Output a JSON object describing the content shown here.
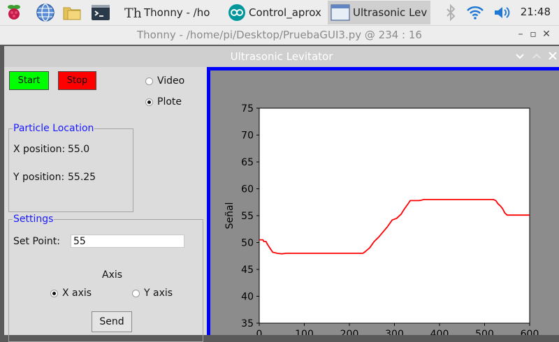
{
  "taskbar": {
    "tasks": [
      {
        "label": "Thonny  -  /ho",
        "icon": "thonny-icon"
      },
      {
        "label": "Control_aprox",
        "icon": "arduino-icon"
      },
      {
        "label": "Ultrasonic Lev",
        "icon": "window-icon"
      }
    ],
    "clock": "21:48"
  },
  "thonny": {
    "title": "Thonny  -  /home/pi/Desktop/PruebaGUI3.py  @  234 : 16"
  },
  "window": {
    "title": "Ultrasonic Levitator",
    "start_label": "Start",
    "stop_label": "Stop",
    "mode_options": [
      {
        "label": "Video",
        "selected": false
      },
      {
        "label": "Plote",
        "selected": true
      }
    ],
    "particle_location": {
      "title": "Particle Location",
      "x_label": "X position:",
      "x_value": "55.0",
      "y_label": "Y position:",
      "y_value": "55.25"
    },
    "settings": {
      "title": "Settings",
      "setpoint_label": "Set Point:",
      "setpoint_value": "55",
      "axis_title": "Axis",
      "axis_options": [
        {
          "label": "X axis",
          "selected": true
        },
        {
          "label": "Y axis",
          "selected": false
        }
      ],
      "send_label": "Send"
    }
  },
  "chart_data": {
    "type": "line",
    "title": "",
    "xlabel": "",
    "ylabel": "Señal",
    "xlim": [
      0,
      600
    ],
    "ylim": [
      35,
      75
    ],
    "xticks": [
      0,
      100,
      200,
      300,
      400,
      500,
      600
    ],
    "yticks": [
      35,
      40,
      45,
      50,
      55,
      60,
      65,
      70,
      75
    ],
    "grid": false,
    "line_color": "#ff0000",
    "series": [
      {
        "x": [
          0,
          8,
          10,
          15,
          18,
          25,
          30,
          40,
          50,
          60,
          80,
          100,
          150,
          200,
          230,
          235,
          245,
          255,
          265,
          275,
          285,
          295,
          305,
          315,
          320,
          330,
          335,
          340,
          355,
          360,
          365,
          400,
          450,
          500,
          520,
          525,
          530,
          535,
          540,
          545,
          550,
          560,
          580,
          600
        ],
        "y": [
          50.5,
          50.5,
          50.2,
          50.2,
          49.7,
          48.8,
          48.2,
          48.0,
          47.9,
          48.0,
          48.0,
          48.0,
          48.0,
          48.0,
          48.0,
          48.3,
          49.0,
          50.2,
          51.0,
          52.0,
          53.0,
          54.2,
          54.5,
          55.3,
          56.0,
          57.2,
          57.8,
          57.8,
          57.8,
          57.9,
          58.0,
          58.0,
          58.0,
          58.0,
          58.0,
          57.8,
          57.2,
          56.8,
          56.3,
          55.5,
          55.1,
          55.1,
          55.1,
          55.1
        ]
      }
    ]
  },
  "colors": {
    "start_button": "#00ff00",
    "stop_button": "#ff0000",
    "group_title": "#1a1aff",
    "plot_border": "#0000ff"
  }
}
